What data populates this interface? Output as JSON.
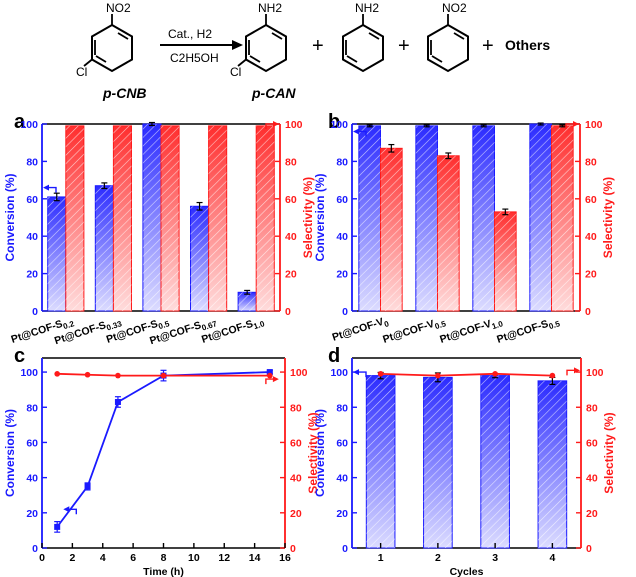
{
  "colors": {
    "blue": "#1a1aff",
    "red": "#ff1a1a",
    "bar_blue": "#3a3aff",
    "bar_red": "#ff4a4a"
  },
  "scheme": {
    "reactant": "p-CNB",
    "reactant_group_top": "NO2",
    "reactant_group_bottom": "Cl",
    "arrow_top": "Cat., H2",
    "arrow_bottom": "C2H5OH",
    "product_main": "p-CAN",
    "product_main_group_top": "NH2",
    "product_main_group_bottom": "Cl",
    "product2_group": "NH2",
    "product3_group": "NO2",
    "plus": "+",
    "others": "Others"
  },
  "chart_data": [
    {
      "panel": "a",
      "type": "bar",
      "categories": [
        "Pt@COF-S0.2",
        "Pt@COF-S0.33",
        "Pt@COF-S0.5",
        "Pt@COF-S0.67",
        "Pt@COF-S1.0"
      ],
      "category_main": [
        "Pt@COF-S",
        "Pt@COF-S",
        "Pt@COF-S",
        "Pt@COF-S",
        "Pt@COF-S"
      ],
      "category_sub": [
        "0.2",
        "0.33",
        "0.5",
        "0.67",
        "1.0"
      ],
      "series": [
        {
          "name": "Conversion",
          "axis": "left",
          "values": [
            61,
            67,
            100,
            56,
            10
          ],
          "errors": [
            2,
            1.5,
            0.8,
            2,
            1
          ]
        },
        {
          "name": "Selectivity",
          "axis": "right",
          "values": [
            99,
            99,
            99,
            99,
            99
          ],
          "errors": [
            0,
            0,
            0,
            0,
            0
          ]
        }
      ],
      "ylabel": "Conversion (%)",
      "y2label": "Selectivity (%)",
      "ylim": [
        0,
        100
      ],
      "y2lim": [
        0,
        100
      ],
      "yticks": [
        "0",
        "20",
        "40",
        "60",
        "80",
        "100"
      ],
      "y2ticks": [
        "0",
        "20",
        "40",
        "60",
        "80",
        "100"
      ]
    },
    {
      "panel": "b",
      "type": "bar",
      "categories": [
        "Pt@COF-V0",
        "Pt@COF-V0.5",
        "Pt@COF-V1.0",
        "Pt@COF-S0.5"
      ],
      "category_main": [
        "Pt@COF-V",
        "Pt@COF-V",
        "Pt@COF-V",
        "Pt@COF-S"
      ],
      "category_sub": [
        "0",
        "0.5",
        "1.0",
        "0.5"
      ],
      "series": [
        {
          "name": "Conversion",
          "axis": "left",
          "values": [
            99,
            99,
            99,
            100
          ],
          "errors": [
            0.5,
            0.5,
            0.5,
            0.5
          ]
        },
        {
          "name": "Selectivity",
          "axis": "right",
          "values": [
            87,
            83,
            53,
            99
          ],
          "errors": [
            2,
            1.5,
            1.5,
            0.5
          ]
        }
      ],
      "ylabel": "Conversion (%)",
      "y2label": "Selectivity (%)",
      "ylim": [
        0,
        100
      ],
      "y2lim": [
        0,
        100
      ],
      "yticks": [
        "0",
        "20",
        "40",
        "60",
        "80",
        "100"
      ],
      "y2ticks": [
        "0",
        "20",
        "40",
        "60",
        "80",
        "100"
      ]
    },
    {
      "panel": "c",
      "type": "line",
      "series": [
        {
          "name": "Conversion",
          "axis": "left",
          "x": [
            1,
            3,
            5,
            8,
            15
          ],
          "values": [
            12,
            35,
            83,
            98,
            100
          ],
          "errors": [
            3,
            2,
            3,
            3,
            1
          ]
        },
        {
          "name": "Selectivity",
          "axis": "right",
          "x": [
            1,
            3,
            5,
            8,
            15
          ],
          "values": [
            99,
            98.5,
            98,
            98,
            98
          ],
          "errors": [
            0,
            0,
            0,
            0,
            0
          ]
        }
      ],
      "xlabel": "Time (h)",
      "ylabel": "Conversion (%)",
      "y2label": "Selectivity (%)",
      "xlim": [
        0,
        16
      ],
      "ylim": [
        0,
        108
      ],
      "y2lim": [
        0,
        108
      ],
      "xticks": [
        "0",
        "2",
        "4",
        "6",
        "8",
        "10",
        "12",
        "14",
        "16"
      ],
      "yticks": [
        "0",
        "20",
        "40",
        "60",
        "80",
        "100"
      ],
      "y2ticks": [
        "0",
        "20",
        "40",
        "60",
        "80",
        "100"
      ]
    },
    {
      "panel": "d",
      "type": "bar",
      "categories": [
        "1",
        "2",
        "3",
        "4"
      ],
      "series": [
        {
          "name": "Conversion",
          "axis": "left",
          "values": [
            98,
            97,
            98,
            95
          ],
          "errors": [
            1.8,
            2.5,
            1.2,
            2
          ]
        },
        {
          "name": "Selectivity",
          "axis": "right",
          "line": true,
          "values": [
            99,
            98,
            99,
            98
          ],
          "errors": [
            0,
            0,
            0,
            0
          ]
        }
      ],
      "xlabel": "Cycles",
      "ylabel": "Conversion (%)",
      "y2label": "Selectivity (%)",
      "ylim": [
        0,
        108
      ],
      "y2lim": [
        0,
        108
      ],
      "yticks": [
        "0",
        "20",
        "40",
        "60",
        "80",
        "100"
      ],
      "y2ticks": [
        "0",
        "20",
        "40",
        "60",
        "80",
        "100"
      ]
    }
  ]
}
